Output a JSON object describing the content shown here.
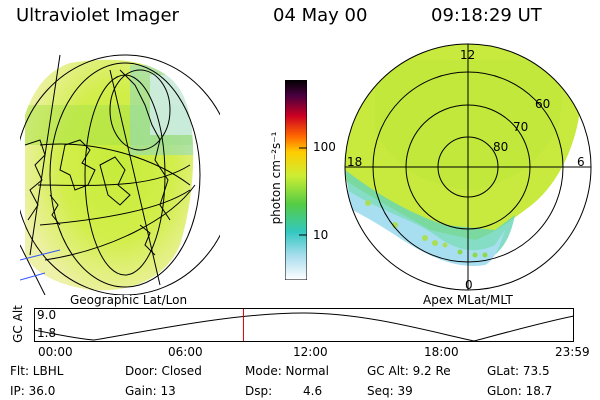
{
  "header": {
    "instrument": "Ultraviolet Imager",
    "date": "04 May 00",
    "time": "09:18:29 UT"
  },
  "colorbar": {
    "unit_label": "photon cm⁻²s⁻¹",
    "ticks": [
      "100",
      "10"
    ]
  },
  "left_panel": {
    "caption": "Geographic Lat/Lon"
  },
  "right_panel": {
    "caption": "Apex MLat/MLT",
    "mlt_labels": {
      "top": "12",
      "left": "18",
      "right": "6",
      "bottom": "0"
    },
    "mlat_labels": [
      "60",
      "70",
      "80"
    ]
  },
  "altitude_plot": {
    "ylabel": "GC Alt",
    "y_ticks": [
      "9.0",
      "1.8"
    ],
    "x_ticks": [
      "00:00",
      "06:00",
      "12:00",
      "18:00",
      "23:59"
    ],
    "current_time_hours": 9.308,
    "marker_color": "#cc0000"
  },
  "info": {
    "row1": {
      "filter": "Flt: LBHL",
      "door": "Door: Closed",
      "mode": "Mode: Normal",
      "gc_alt": "GC Alt: 9.2 Re",
      "glat": "GLat: 73.5"
    },
    "row2": {
      "ip": "IP: 36.0",
      "gain": "Gain: 13",
      "dsp_label": "Dsp:",
      "dsp_value": "4.6",
      "seq": "Seq: 39",
      "glon": "GLon: 18.7"
    }
  }
}
